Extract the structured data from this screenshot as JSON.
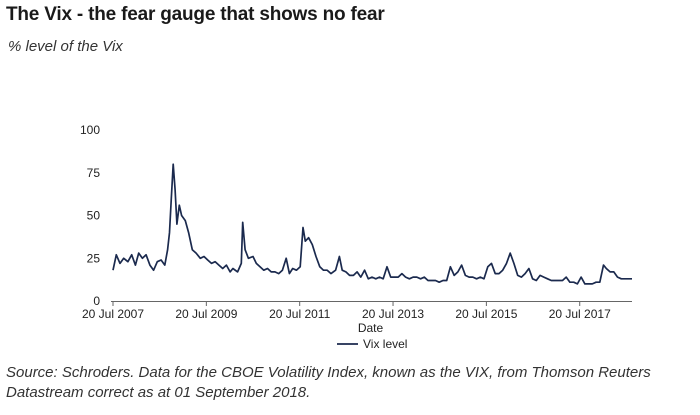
{
  "chart_data": {
    "type": "line",
    "title": "The Vix - the fear gauge that shows no fear",
    "subtitle": "% level of the Vix",
    "xlabel": "Date",
    "ylabel": "",
    "ylim": [
      0,
      100
    ],
    "yticks": [
      "0",
      "25",
      "50",
      "75",
      "100"
    ],
    "xticks": [
      {
        "label": "20 Jul 2007",
        "t": 2007.55
      },
      {
        "label": "20 Jul 2009",
        "t": 2009.55
      },
      {
        "label": "20 Jul 2011",
        "t": 2011.55
      },
      {
        "label": "20 Jul 2013",
        "t": 2013.55
      },
      {
        "label": "20 Jul 2015",
        "t": 2015.55
      },
      {
        "label": "20 Jul 2017",
        "t": 2017.55
      }
    ],
    "xlim": [
      2007.55,
      2018.67
    ],
    "series": [
      {
        "name": "Vix level",
        "color": "#1b2a4e",
        "points": [
          [
            2007.55,
            18
          ],
          [
            2007.62,
            27
          ],
          [
            2007.7,
            22
          ],
          [
            2007.78,
            25
          ],
          [
            2007.87,
            23
          ],
          [
            2007.95,
            27
          ],
          [
            2008.03,
            21
          ],
          [
            2008.1,
            28
          ],
          [
            2008.18,
            25
          ],
          [
            2008.26,
            27
          ],
          [
            2008.34,
            21
          ],
          [
            2008.42,
            18
          ],
          [
            2008.5,
            23
          ],
          [
            2008.58,
            24
          ],
          [
            2008.66,
            21
          ],
          [
            2008.72,
            30
          ],
          [
            2008.76,
            40
          ],
          [
            2008.8,
            60
          ],
          [
            2008.84,
            80
          ],
          [
            2008.88,
            65
          ],
          [
            2008.92,
            45
          ],
          [
            2008.97,
            56
          ],
          [
            2009.02,
            50
          ],
          [
            2009.1,
            47
          ],
          [
            2009.17,
            40
          ],
          [
            2009.25,
            30
          ],
          [
            2009.33,
            28
          ],
          [
            2009.42,
            25
          ],
          [
            2009.5,
            26
          ],
          [
            2009.58,
            24
          ],
          [
            2009.66,
            22
          ],
          [
            2009.74,
            23
          ],
          [
            2009.82,
            21
          ],
          [
            2009.9,
            19
          ],
          [
            2009.98,
            21
          ],
          [
            2010.06,
            17
          ],
          [
            2010.12,
            19
          ],
          [
            2010.22,
            17
          ],
          [
            2010.3,
            22
          ],
          [
            2010.33,
            46
          ],
          [
            2010.38,
            30
          ],
          [
            2010.45,
            25
          ],
          [
            2010.55,
            26
          ],
          [
            2010.62,
            22
          ],
          [
            2010.7,
            20
          ],
          [
            2010.78,
            18
          ],
          [
            2010.86,
            19
          ],
          [
            2010.94,
            17
          ],
          [
            2011.02,
            17
          ],
          [
            2011.1,
            16
          ],
          [
            2011.18,
            18
          ],
          [
            2011.26,
            25
          ],
          [
            2011.33,
            16
          ],
          [
            2011.4,
            19
          ],
          [
            2011.48,
            18
          ],
          [
            2011.56,
            20
          ],
          [
            2011.62,
            43
          ],
          [
            2011.67,
            35
          ],
          [
            2011.74,
            37
          ],
          [
            2011.82,
            33
          ],
          [
            2011.9,
            26
          ],
          [
            2011.98,
            20
          ],
          [
            2012.06,
            18
          ],
          [
            2012.14,
            18
          ],
          [
            2012.22,
            16
          ],
          [
            2012.32,
            18
          ],
          [
            2012.4,
            26
          ],
          [
            2012.46,
            18
          ],
          [
            2012.54,
            17
          ],
          [
            2012.62,
            15
          ],
          [
            2012.7,
            15
          ],
          [
            2012.78,
            17
          ],
          [
            2012.86,
            14
          ],
          [
            2012.94,
            18
          ],
          [
            2013.02,
            13
          ],
          [
            2013.1,
            14
          ],
          [
            2013.18,
            13
          ],
          [
            2013.26,
            14
          ],
          [
            2013.34,
            13
          ],
          [
            2013.42,
            20
          ],
          [
            2013.5,
            14
          ],
          [
            2013.58,
            14
          ],
          [
            2013.66,
            14
          ],
          [
            2013.74,
            16
          ],
          [
            2013.82,
            14
          ],
          [
            2013.9,
            13
          ],
          [
            2013.98,
            14
          ],
          [
            2014.06,
            14
          ],
          [
            2014.14,
            13
          ],
          [
            2014.22,
            14
          ],
          [
            2014.3,
            12
          ],
          [
            2014.38,
            12
          ],
          [
            2014.46,
            12
          ],
          [
            2014.54,
            11
          ],
          [
            2014.62,
            12
          ],
          [
            2014.7,
            12
          ],
          [
            2014.78,
            20
          ],
          [
            2014.86,
            15
          ],
          [
            2014.94,
            17
          ],
          [
            2015.02,
            21
          ],
          [
            2015.1,
            15
          ],
          [
            2015.18,
            14
          ],
          [
            2015.26,
            14
          ],
          [
            2015.34,
            13
          ],
          [
            2015.42,
            14
          ],
          [
            2015.5,
            13
          ],
          [
            2015.58,
            20
          ],
          [
            2015.66,
            22
          ],
          [
            2015.74,
            16
          ],
          [
            2015.82,
            16
          ],
          [
            2015.9,
            18
          ],
          [
            2015.98,
            22
          ],
          [
            2016.06,
            28
          ],
          [
            2016.14,
            22
          ],
          [
            2016.22,
            15
          ],
          [
            2016.3,
            14
          ],
          [
            2016.38,
            16
          ],
          [
            2016.46,
            19
          ],
          [
            2016.54,
            13
          ],
          [
            2016.62,
            12
          ],
          [
            2016.7,
            15
          ],
          [
            2016.78,
            14
          ],
          [
            2016.86,
            13
          ],
          [
            2016.94,
            12
          ],
          [
            2017.02,
            12
          ],
          [
            2017.1,
            12
          ],
          [
            2017.18,
            12
          ],
          [
            2017.26,
            14
          ],
          [
            2017.34,
            11
          ],
          [
            2017.42,
            11
          ],
          [
            2017.5,
            10
          ],
          [
            2017.58,
            14
          ],
          [
            2017.66,
            10
          ],
          [
            2017.74,
            10
          ],
          [
            2017.82,
            10
          ],
          [
            2017.9,
            11
          ],
          [
            2017.98,
            11
          ],
          [
            2018.06,
            21
          ],
          [
            2018.12,
            19
          ],
          [
            2018.2,
            17
          ],
          [
            2018.28,
            17
          ],
          [
            2018.36,
            14
          ],
          [
            2018.44,
            13
          ],
          [
            2018.52,
            13
          ],
          [
            2018.6,
            13
          ],
          [
            2018.67,
            13
          ]
        ]
      }
    ],
    "legend": {
      "position": "bottom"
    },
    "grid": false
  },
  "source_note": "Source: Schroders. Data for the CBOE Volatility Index, known as the VIX, from Thomson Reuters Datastream correct as at 01 September 2018."
}
